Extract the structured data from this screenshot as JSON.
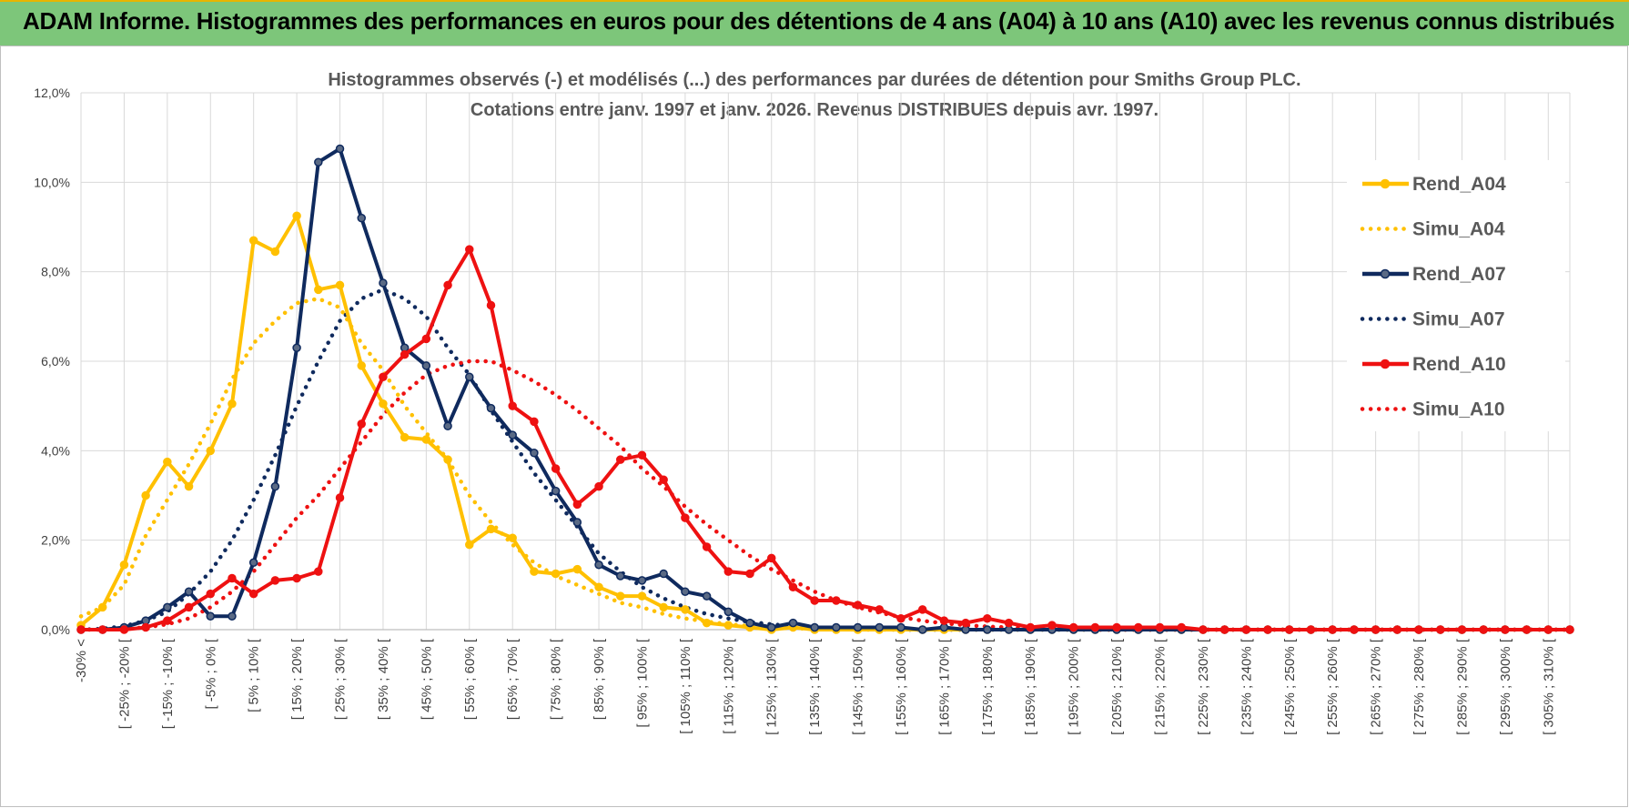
{
  "header": {
    "title": "ADAM Informe. Histogrammes des performances en euros pour des détentions de 4 ans (A04) à 10 ans (A10) avec les revenus connus distribués"
  },
  "chart_data": {
    "type": "line",
    "title_line1": "Histogrammes observés (-) et modélisés (...) des performances par durées de détention pour Smiths Group PLC.",
    "title_line2": "Cotations entre janv. 1997 et janv. 2026. Revenus DISTRIBUES depuis avr. 1997.",
    "ylim": [
      0,
      12
    ],
    "y_ticks": [
      "0,0%",
      "2,0%",
      "4,0%",
      "6,0%",
      "8,0%",
      "10,0%",
      "12,0%"
    ],
    "x_labels": [
      "-30% <",
      "[ -25% ; -20% [",
      "[ -15% ; -10% [",
      "[ -5% ; 0% [",
      "[ 5% ; 10% [",
      "[ 15% ; 20% [",
      "[ 25% ; 30% [",
      "[ 35% ; 40% [",
      "[ 45% ; 50% [",
      "[ 55% ; 60% [",
      "[ 65% ; 70% [",
      "[ 75% ; 80% [",
      "[ 85% ; 90% [",
      "[ 95% ; 100% [",
      "[ 105% ; 110% [",
      "[ 115% ; 120% [",
      "[ 125% ; 130% [",
      "[ 135% ; 140% [",
      "[ 145% ; 150% [",
      "[ 155% ; 160% [",
      "[ 165% ; 170% [",
      "[ 175% ; 180% [",
      "[ 185% ; 190% [",
      "[ 195% ; 200% [",
      "[ 205% ; 210% [",
      "[ 215% ; 220% [",
      "[ 225% ; 230% [",
      "[ 235% ; 240% [",
      "[ 245% ; 250% [",
      "[ 255% ; 260% [",
      "[ 265% ; 270% [",
      "[ 275% ; 280% [",
      "[ 285% ; 290% [",
      "[ 295% ; 300% [",
      "[ 305% ; 310% ["
    ],
    "n_points": 70,
    "series": [
      {
        "name": "Rend_A04",
        "color": "#ffc000",
        "style": "solid",
        "markers": true,
        "values": [
          0.1,
          0.5,
          1.45,
          3.0,
          3.75,
          3.2,
          4.0,
          5.05,
          8.7,
          8.45,
          9.25,
          7.6,
          7.7,
          5.9,
          5.05,
          4.3,
          4.25,
          3.8,
          1.9,
          2.25,
          2.05,
          1.3,
          1.25,
          1.35,
          0.95,
          0.75,
          0.75,
          0.5,
          0.45,
          0.15,
          0.1,
          0.05,
          0,
          0.05,
          0,
          0,
          0,
          0,
          0,
          0,
          0,
          0,
          0,
          0,
          0,
          0,
          0,
          0,
          0,
          0,
          0,
          0,
          0,
          0,
          0,
          0,
          0,
          0,
          0,
          0,
          0,
          0,
          0,
          0,
          0,
          0,
          0,
          0,
          0,
          0
        ]
      },
      {
        "name": "Simu_A04",
        "color": "#ffc000",
        "style": "dotted",
        "markers": false,
        "values": [
          0.3,
          0.5,
          1.0,
          2.1,
          2.9,
          3.7,
          4.6,
          5.6,
          6.4,
          6.9,
          7.3,
          7.4,
          7.2,
          6.4,
          5.8,
          5.0,
          4.4,
          3.8,
          3.0,
          2.4,
          1.9,
          1.5,
          1.2,
          1.0,
          0.8,
          0.6,
          0.5,
          0.35,
          0.25,
          0.18,
          0.12,
          0.08,
          0.05,
          0.03,
          0.02,
          0.01,
          0,
          0,
          0,
          0,
          0,
          0,
          0,
          0,
          0,
          0,
          0,
          0,
          0,
          0,
          0,
          0,
          0,
          0,
          0,
          0,
          0,
          0,
          0,
          0,
          0,
          0,
          0,
          0,
          0,
          0,
          0,
          0,
          0,
          0
        ]
      },
      {
        "name": "Rend_A07",
        "color": "#0f2a5e",
        "style": "solid",
        "markers": true,
        "values": [
          0,
          0,
          0.05,
          0.2,
          0.5,
          0.85,
          0.3,
          0.3,
          1.5,
          3.2,
          6.3,
          10.45,
          10.75,
          9.2,
          7.75,
          6.3,
          5.9,
          4.55,
          5.65,
          4.95,
          4.35,
          3.95,
          3.1,
          2.4,
          1.45,
          1.2,
          1.1,
          1.25,
          0.85,
          0.75,
          0.4,
          0.15,
          0.05,
          0.15,
          0.05,
          0.05,
          0.05,
          0.05,
          0.05,
          0,
          0.05,
          0,
          0,
          0,
          0,
          0,
          0,
          0,
          0,
          0,
          0,
          0,
          0,
          0,
          0,
          0,
          0,
          0,
          0,
          0,
          0,
          0,
          0,
          0,
          0,
          0,
          0,
          0,
          0,
          0
        ]
      },
      {
        "name": "Simu_A07",
        "color": "#0f2a5e",
        "style": "dotted",
        "markers": false,
        "values": [
          0,
          0.02,
          0.08,
          0.2,
          0.4,
          0.8,
          1.3,
          2.0,
          2.9,
          3.9,
          5.0,
          6.0,
          6.9,
          7.4,
          7.6,
          7.4,
          7.0,
          6.3,
          5.7,
          4.9,
          4.2,
          3.5,
          2.9,
          2.3,
          1.7,
          1.3,
          0.95,
          0.7,
          0.5,
          0.35,
          0.25,
          0.17,
          0.12,
          0.08,
          0.05,
          0.03,
          0.02,
          0.01,
          0,
          0,
          0,
          0,
          0,
          0,
          0,
          0,
          0,
          0,
          0,
          0,
          0,
          0,
          0,
          0,
          0,
          0,
          0,
          0,
          0,
          0,
          0,
          0,
          0,
          0,
          0,
          0,
          0,
          0,
          0,
          0
        ]
      },
      {
        "name": "Rend_A10",
        "color": "#ee1111",
        "style": "solid",
        "markers": true,
        "values": [
          0,
          0,
          0,
          0.05,
          0.2,
          0.5,
          0.8,
          1.15,
          0.8,
          1.1,
          1.15,
          1.3,
          2.95,
          4.6,
          5.65,
          6.15,
          6.5,
          7.7,
          8.5,
          7.25,
          5.0,
          4.65,
          3.6,
          2.8,
          3.2,
          3.8,
          3.9,
          3.35,
          2.5,
          1.85,
          1.3,
          1.25,
          1.6,
          0.95,
          0.65,
          0.65,
          0.55,
          0.45,
          0.25,
          0.45,
          0.2,
          0.15,
          0.25,
          0.15,
          0.05,
          0.1,
          0.05,
          0.05,
          0.05,
          0.05,
          0.05,
          0.05,
          0,
          0,
          0,
          0,
          0,
          0,
          0,
          0,
          0,
          0,
          0,
          0,
          0,
          0,
          0,
          0,
          0,
          0
        ]
      },
      {
        "name": "Simu_A10",
        "color": "#ee1111",
        "style": "dotted",
        "markers": false,
        "values": [
          0,
          0,
          0.02,
          0.05,
          0.12,
          0.25,
          0.5,
          0.85,
          1.3,
          1.9,
          2.5,
          3.0,
          3.6,
          4.2,
          4.8,
          5.3,
          5.7,
          5.9,
          6.0,
          6.0,
          5.8,
          5.55,
          5.25,
          4.9,
          4.5,
          4.1,
          3.6,
          3.2,
          2.75,
          2.35,
          2.0,
          1.65,
          1.35,
          1.1,
          0.85,
          0.65,
          0.5,
          0.38,
          0.28,
          0.2,
          0.14,
          0.1,
          0.07,
          0.05,
          0.03,
          0.02,
          0.01,
          0,
          0,
          0,
          0,
          0,
          0,
          0,
          0,
          0,
          0,
          0,
          0,
          0,
          0,
          0,
          0,
          0,
          0,
          0,
          0,
          0,
          0,
          0
        ]
      }
    ]
  }
}
